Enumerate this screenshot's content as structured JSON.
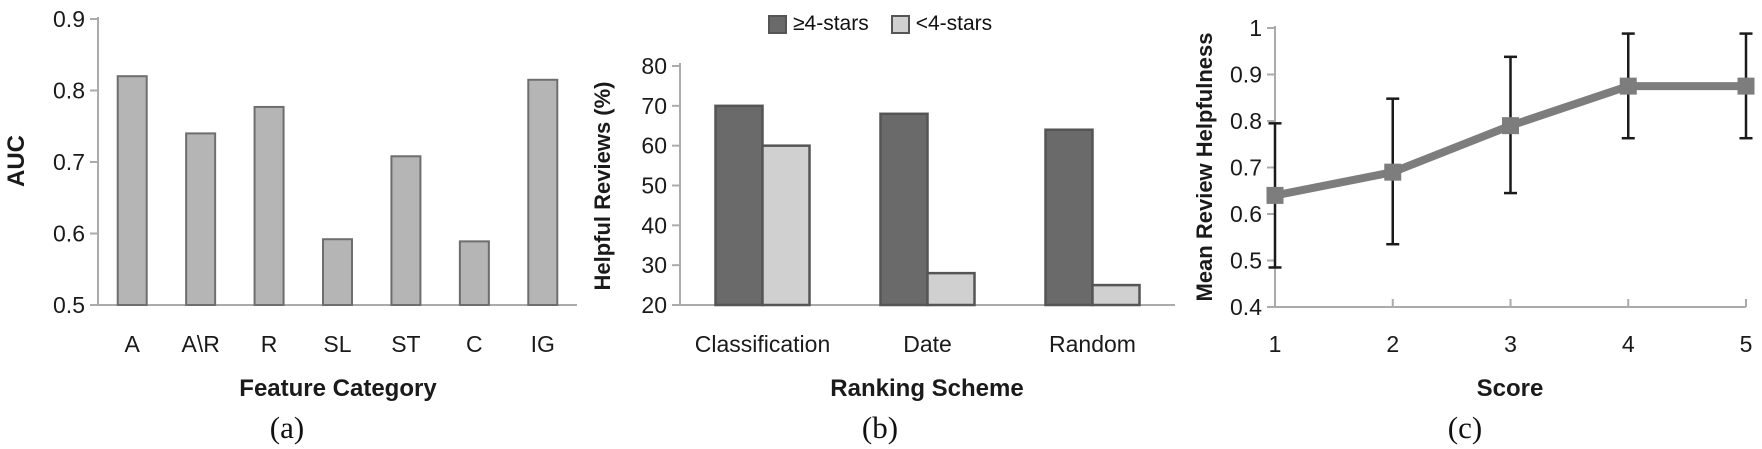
{
  "figure": {
    "background": "#ffffff",
    "axis_color": "#ababab",
    "text_color": "#1a1a1a",
    "captions": {
      "a": "(a)",
      "b": "(b)",
      "c": "(c)"
    }
  },
  "chart_data": [
    {
      "id": "a",
      "type": "bar",
      "title": "",
      "xlabel": "Feature Category",
      "ylabel": "AUC",
      "categories": [
        "A",
        "A\\R",
        "R",
        "SL",
        "ST",
        "C",
        "IG"
      ],
      "values": [
        0.82,
        0.74,
        0.777,
        0.592,
        0.708,
        0.589,
        0.815
      ],
      "ylim": [
        0.5,
        0.9
      ],
      "yticks": [
        0.5,
        0.6,
        0.7,
        0.8,
        0.9
      ],
      "grid": false,
      "bar_fill": "#b5b5b5",
      "bar_stroke": "#6e6e6e"
    },
    {
      "id": "b",
      "type": "bar",
      "title": "",
      "xlabel": "Ranking Scheme",
      "ylabel": "Helpful Reviews (%)",
      "categories": [
        "Classification",
        "Date",
        "Random"
      ],
      "series": [
        {
          "name": "≥4-stars",
          "values": [
            70,
            68,
            64
          ],
          "fill": "#6a6a6a",
          "stroke": "#555555"
        },
        {
          "name": "<4-stars",
          "values": [
            60,
            28,
            25
          ],
          "fill": "#d0d0d0",
          "stroke": "#555555"
        }
      ],
      "ylim": [
        20,
        80
      ],
      "yticks": [
        20,
        30,
        40,
        50,
        60,
        70,
        80
      ],
      "grid": false,
      "legend_position": "top"
    },
    {
      "id": "c",
      "type": "line",
      "title": "",
      "xlabel": "Score",
      "ylabel": "Mean Review Helpfulness",
      "x": [
        1,
        2,
        3,
        4,
        5
      ],
      "y": [
        0.64,
        0.69,
        0.79,
        0.875,
        0.875
      ],
      "err_low": [
        0.485,
        0.535,
        0.645,
        0.763,
        0.763
      ],
      "err_high": [
        0.795,
        0.848,
        0.938,
        0.988,
        0.988
      ],
      "ylim": [
        0.4,
        1.0
      ],
      "yticks": [
        0.4,
        0.5,
        0.6,
        0.7,
        0.8,
        0.9,
        1
      ],
      "grid": false,
      "line_color": "#7d7d7d",
      "marker": "square",
      "error_color": "#1a1a1a"
    }
  ]
}
